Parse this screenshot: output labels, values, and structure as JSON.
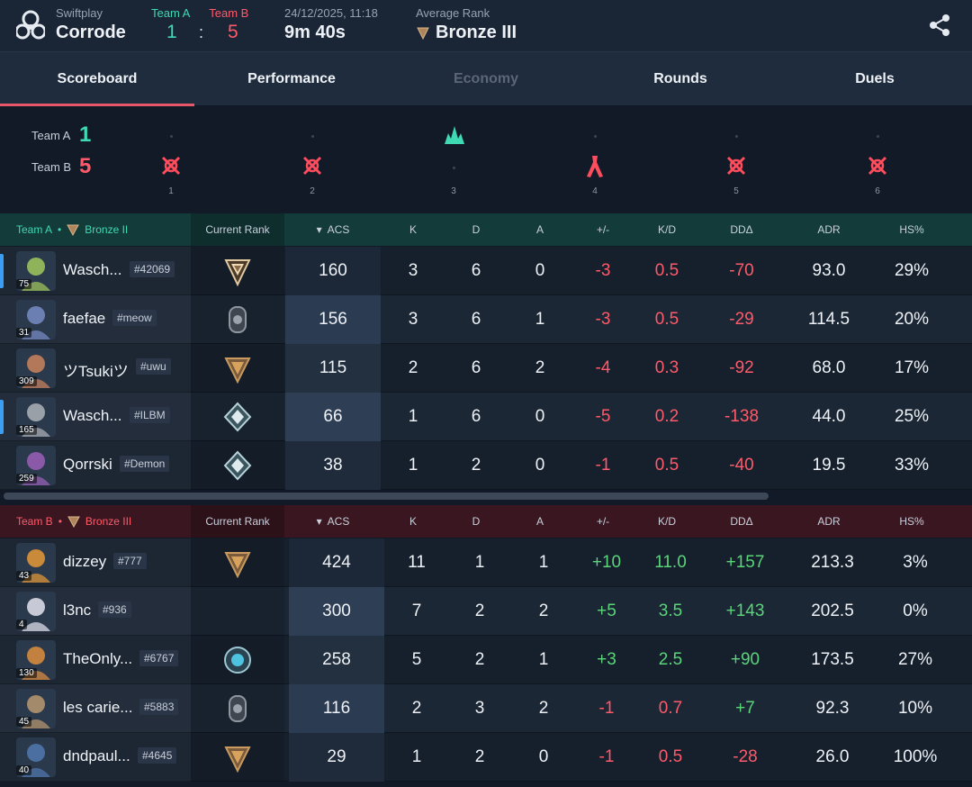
{
  "header": {
    "mode": "Swiftplay",
    "map": "Corrode",
    "team_a_label": "Team A",
    "team_b_label": "Team B",
    "team_a_score": "1",
    "team_b_score": "5",
    "score_sep": ":",
    "datetime": "24/12/2025, 11:18",
    "duration": "9m 40s",
    "avg_rank_label": "Average Rank",
    "avg_rank": "Bronze III"
  },
  "tabs": [
    {
      "label": "Scoreboard",
      "active": true,
      "disabled": false
    },
    {
      "label": "Performance",
      "active": false,
      "disabled": false
    },
    {
      "label": "Economy",
      "active": false,
      "disabled": true
    },
    {
      "label": "Rounds",
      "active": false,
      "disabled": false
    },
    {
      "label": "Duels",
      "active": false,
      "disabled": false
    }
  ],
  "timeline": {
    "team_a_label": "Team A",
    "team_a_score": "1",
    "team_b_label": "Team B",
    "team_b_score": "5",
    "rounds": [
      {
        "num": "1",
        "winner": "B",
        "icon": "elimination-icon"
      },
      {
        "num": "2",
        "winner": "B",
        "icon": "elimination-icon"
      },
      {
        "num": "3",
        "winner": "A",
        "icon": "spike-defuse-icon"
      },
      {
        "num": "4",
        "winner": "B",
        "icon": "spike-detonate-icon"
      },
      {
        "num": "5",
        "winner": "B",
        "icon": "elimination-icon"
      },
      {
        "num": "6",
        "winner": "B",
        "icon": "elimination-icon"
      }
    ]
  },
  "columns": {
    "current_rank": "Current Rank",
    "acs": "ACS",
    "k": "K",
    "d": "D",
    "a": "A",
    "plus_minus": "+/-",
    "kd": "K/D",
    "dd": "DDΔ",
    "adr": "ADR",
    "hs": "HS%"
  },
  "team_a": {
    "label": "Team A",
    "sep": "•",
    "rank": "Bronze II",
    "color": "#3fd9b4",
    "players": [
      {
        "name": "Wasch...",
        "tag": "#42069",
        "level": "75",
        "acs": "160",
        "k": "3",
        "d": "6",
        "a": "0",
        "pm": "-3",
        "kd": "0.5",
        "dd": "-70",
        "adr": "93.0",
        "hs": "29%",
        "selected": true,
        "rank_icon": "ascendant-rank-icon",
        "avatar_color": "#8fb35a"
      },
      {
        "name": "faefae",
        "tag": "#meow",
        "level": "31",
        "acs": "156",
        "k": "3",
        "d": "6",
        "a": "1",
        "pm": "-3",
        "kd": "0.5",
        "dd": "-29",
        "adr": "114.5",
        "hs": "20%",
        "selected": false,
        "rank_icon": "iron-rank-icon",
        "avatar_color": "#6c7fb3"
      },
      {
        "name": "ツTsukiツ",
        "tag": "#uwu",
        "level": "309",
        "acs": "115",
        "k": "2",
        "d": "6",
        "a": "2",
        "pm": "-4",
        "kd": "0.3",
        "dd": "-92",
        "adr": "68.0",
        "hs": "17%",
        "selected": false,
        "rank_icon": "bronze-rank-icon",
        "avatar_color": "#b3785a"
      },
      {
        "name": "Wasch...",
        "tag": "#ILBM",
        "level": "165",
        "acs": "66",
        "k": "1",
        "d": "6",
        "a": "0",
        "pm": "-5",
        "kd": "0.2",
        "dd": "-138",
        "adr": "44.0",
        "hs": "25%",
        "selected": true,
        "rank_icon": "platinum-rank-icon",
        "avatar_color": "#9aa0a8"
      },
      {
        "name": "Qorrski",
        "tag": "#Demon",
        "level": "259",
        "acs": "38",
        "k": "1",
        "d": "2",
        "a": "0",
        "pm": "-1",
        "kd": "0.5",
        "dd": "-40",
        "adr": "19.5",
        "hs": "33%",
        "selected": false,
        "rank_icon": "platinum-rank-icon",
        "avatar_color": "#8a5aa8"
      }
    ]
  },
  "team_b": {
    "label": "Team B",
    "sep": "•",
    "rank": "Bronze III",
    "color": "#ff5a6a",
    "players": [
      {
        "name": "dizzey",
        "tag": "#777",
        "level": "43",
        "acs": "424",
        "k": "11",
        "d": "1",
        "a": "1",
        "pm": "+10",
        "kd": "11.0",
        "dd": "+157",
        "adr": "213.3",
        "hs": "3%",
        "rank_icon": "bronze-rank-icon",
        "avatar_color": "#c98a3a"
      },
      {
        "name": "l3nc",
        "tag": "#936",
        "level": "4",
        "acs": "300",
        "k": "7",
        "d": "2",
        "a": "2",
        "pm": "+5",
        "kd": "3.5",
        "dd": "+143",
        "adr": "202.5",
        "hs": "0%",
        "rank_icon": "",
        "avatar_color": "#c7c9d6"
      },
      {
        "name": "TheOnly...",
        "tag": "#6767",
        "level": "130",
        "acs": "258",
        "k": "5",
        "d": "2",
        "a": "1",
        "pm": "+3",
        "kd": "2.5",
        "dd": "+90",
        "adr": "173.5",
        "hs": "27%",
        "rank_icon": "diamond-rank-icon",
        "avatar_color": "#c2813f"
      },
      {
        "name": "les carie...",
        "tag": "#5883",
        "level": "45",
        "acs": "116",
        "k": "2",
        "d": "3",
        "a": "2",
        "pm": "-1",
        "kd": "0.7",
        "dd": "+7",
        "adr": "92.3",
        "hs": "10%",
        "rank_icon": "iron-rank-icon",
        "avatar_color": "#a38a6a"
      },
      {
        "name": "dndpaul...",
        "tag": "#4645",
        "level": "40",
        "acs": "29",
        "k": "1",
        "d": "2",
        "a": "0",
        "pm": "-1",
        "kd": "0.5",
        "dd": "-28",
        "adr": "26.0",
        "hs": "100%",
        "rank_icon": "bronze-rank-icon",
        "avatar_color": "#4a6fa0"
      }
    ]
  }
}
